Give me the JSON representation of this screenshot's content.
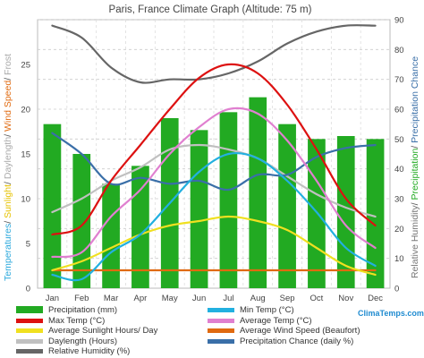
{
  "chart_data": {
    "type": "bar",
    "title": "Paris, France Climate Graph (Altitude: 75 m)",
    "watermark": "ClimaTemps.com",
    "categories": [
      "Jan",
      "Feb",
      "Mar",
      "Apr",
      "May",
      "Jun",
      "Jul",
      "Aug",
      "Sep",
      "Oct",
      "Nov",
      "Dec"
    ],
    "left_axis": {
      "ylim": [
        0,
        30
      ],
      "ticks": [
        0,
        5,
        10,
        15,
        20,
        25
      ],
      "label_parts": [
        {
          "text": "Temperatures",
          "color": "#2aa8dc"
        },
        {
          "text": "/ ",
          "color": "#555555"
        },
        {
          "text": "Sunlight",
          "color": "#e6c200"
        },
        {
          "text": "/ ",
          "color": "#555555"
        },
        {
          "text": "Daylength",
          "color": "#aaaaaa"
        },
        {
          "text": "/ ",
          "color": "#555555"
        },
        {
          "text": "Wind Speed",
          "color": "#e06a10"
        },
        {
          "text": "/ ",
          "color": "#555555"
        },
        {
          "text": "Frost",
          "color": "#aaaaaa"
        }
      ]
    },
    "right_axis": {
      "ylim": [
        0,
        90
      ],
      "ticks": [
        0,
        10,
        20,
        30,
        40,
        50,
        60,
        70,
        80,
        90
      ],
      "label_parts": [
        {
          "text": "Relative Humidity",
          "color": "#777777"
        },
        {
          "text": "/ ",
          "color": "#555555"
        },
        {
          "text": "Precipitation",
          "color": "#22aa22"
        },
        {
          "text": "/ ",
          "color": "#555555"
        },
        {
          "text": "Precipitation Chance",
          "color": "#3a6fa8"
        }
      ]
    },
    "grid": true,
    "series": [
      {
        "name": "Precipitation (mm)",
        "kind": "bar",
        "axis": "right",
        "color": "#22aa22",
        "values": [
          55,
          45,
          35,
          41,
          57,
          53,
          59,
          64,
          55,
          50,
          51,
          50
        ]
      },
      {
        "name": "Min Temp (°C)",
        "kind": "line",
        "axis": "left",
        "color": "#22b0e0",
        "values": [
          1.5,
          1.0,
          4.0,
          6.0,
          9.5,
          13.0,
          15.0,
          14.5,
          12.0,
          8.5,
          4.5,
          2.5
        ]
      },
      {
        "name": "Max Temp (°C)",
        "kind": "line",
        "axis": "left",
        "color": "#dd1111",
        "values": [
          6.0,
          7.0,
          12.0,
          16.0,
          20.0,
          23.5,
          25.0,
          24.0,
          20.5,
          15.5,
          10.0,
          7.0
        ]
      },
      {
        "name": "Average Temp (°C)",
        "kind": "line",
        "axis": "left",
        "color": "#e080d0",
        "values": [
          3.5,
          4.0,
          8.0,
          11.0,
          15.0,
          18.0,
          20.0,
          19.5,
          16.5,
          12.0,
          7.0,
          4.5
        ]
      },
      {
        "name": "Average Sunlight Hours/ Day",
        "kind": "line",
        "axis": "left",
        "color": "#f0e020",
        "values": [
          2.0,
          3.0,
          4.5,
          6.0,
          7.0,
          7.5,
          8.0,
          7.5,
          6.5,
          4.5,
          2.5,
          1.5
        ]
      },
      {
        "name": "Average Wind Speed (Beaufort)",
        "kind": "line",
        "axis": "left",
        "color": "#e06a10",
        "values": [
          2,
          2,
          2,
          2,
          2,
          2,
          2,
          2,
          2,
          2,
          2,
          2
        ]
      },
      {
        "name": "Daylength (Hours)",
        "kind": "line",
        "axis": "left",
        "color": "#c0c0c0",
        "values": [
          8.5,
          10.0,
          12.0,
          13.5,
          15.5,
          16.0,
          15.5,
          14.5,
          12.5,
          10.5,
          9.0,
          8.0
        ]
      },
      {
        "name": "Precipitation Chance (daily %)",
        "kind": "line",
        "axis": "right",
        "color": "#3a6fa8",
        "values": [
          52,
          45,
          35,
          37,
          35,
          36,
          33,
          38,
          38,
          44,
          47,
          48
        ]
      },
      {
        "name": "Relative Humidity (%)",
        "kind": "line",
        "axis": "right",
        "color": "#666666",
        "values": [
          88,
          84,
          74,
          69,
          70,
          70,
          72,
          76,
          82,
          86,
          88,
          88
        ]
      }
    ]
  }
}
